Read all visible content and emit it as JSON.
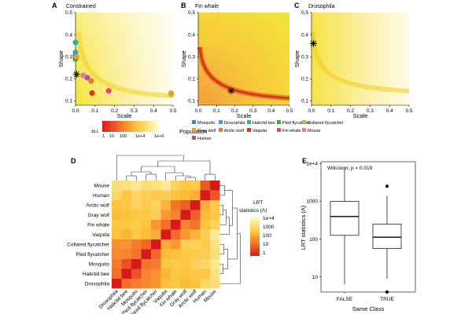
{
  "chart_data": [
    {
      "panel": "A",
      "title": "Constrained",
      "type": "heatmap-scatter",
      "xlabel": "Scale",
      "ylabel": "Shape",
      "xticks": [
        "0.0",
        "0.1",
        "0.2",
        "0.3",
        "0.4",
        "0.5"
      ],
      "yticks": [
        "0.1",
        "0.2",
        "0.3",
        "0.4",
        "0.5"
      ],
      "xlim": [
        0,
        0.5
      ],
      "ylim": [
        0.08,
        0.5
      ],
      "mle": {
        "x": 0.005,
        "y": 0.22
      },
      "points": [
        {
          "name": "Halictid bee",
          "x": 0.0,
          "y": 0.365
        },
        {
          "name": "Drosophila",
          "x": 0.0,
          "y": 0.32
        },
        {
          "name": "Mosquito",
          "x": 0.0,
          "y": 0.305
        },
        {
          "name": "Pied flycatcher",
          "x": 0.0,
          "y": 0.29
        },
        {
          "name": "Gray wolf",
          "x": 0.005,
          "y": 0.3
        },
        {
          "name": "Human",
          "x": 0.06,
          "y": 0.205
        },
        {
          "name": "Mouse",
          "x": 0.04,
          "y": 0.215
        },
        {
          "name": "Arctic wolf",
          "x": 0.08,
          "y": 0.19
        },
        {
          "name": "Fin whale",
          "x": 0.17,
          "y": 0.145
        },
        {
          "name": "Vaquita",
          "x": 0.085,
          "y": 0.135
        },
        {
          "name": "Collared flycatcher",
          "x": 0.49,
          "y": 0.135
        },
        {
          "name": "Gray wolf 2",
          "x": 0.49,
          "y": 0.13
        }
      ]
    },
    {
      "panel": "B",
      "title": "Fin whale",
      "type": "heatmap",
      "xlabel": "Scale",
      "ylabel": "Shape",
      "xticks": [
        "0.0",
        "0.1",
        "0.2",
        "0.3",
        "0.4",
        "0.5"
      ],
      "yticks": [
        "0.1",
        "0.2",
        "0.3",
        "0.4",
        "0.5"
      ],
      "xlim": [
        0,
        0.5
      ],
      "ylim": [
        0.08,
        0.5
      ],
      "mle": {
        "x": 0.18,
        "y": 0.145
      }
    },
    {
      "panel": "C",
      "title": "Drosophila",
      "type": "heatmap",
      "xlabel": "Scale",
      "ylabel": "Shape",
      "xticks": [
        "0.0",
        "0.1",
        "0.2",
        "0.3",
        "0.4",
        "0.5"
      ],
      "yticks": [
        "0.1",
        "0.2",
        "0.3",
        "0.4",
        "0.5"
      ],
      "xlim": [
        0,
        0.5
      ],
      "ylim": [
        0.08,
        0.5
      ],
      "mle": {
        "x": 0.01,
        "y": 0.36
      }
    },
    {
      "panel": "D",
      "type": "heatmap",
      "labels": [
        "Drosophila",
        "Halictid bee",
        "Mosquito",
        "Pied flycatcher",
        "Collared flycatcher",
        "Vaquita",
        "Fin whale",
        "Gray wolf",
        "Arctic wolf",
        "Human",
        "Mouse"
      ],
      "values_log10": [
        [
          0,
          1.2,
          1.4,
          1.6,
          1.7,
          2.4,
          2.5,
          2.3,
          2.4,
          2.9,
          3.1
        ],
        [
          1.2,
          0,
          0.8,
          1.5,
          1.7,
          2.2,
          2.5,
          2.4,
          2.5,
          2.5,
          3.2
        ],
        [
          1.4,
          0.8,
          0,
          1.3,
          1.4,
          2.5,
          2.6,
          2.5,
          2.8,
          2.9,
          3.4
        ],
        [
          1.6,
          1.5,
          1.3,
          0,
          1.1,
          2.3,
          2.4,
          2.5,
          2.6,
          2.7,
          3.1
        ],
        [
          1.7,
          1.7,
          1.4,
          1.1,
          0,
          2.1,
          1.8,
          2.7,
          2.8,
          2.6,
          3.2
        ],
        [
          2.4,
          2.2,
          2.5,
          2.3,
          2.1,
          0,
          1.2,
          1.8,
          2.2,
          2.7,
          3.5
        ],
        [
          2.5,
          2.5,
          2.6,
          2.4,
          1.8,
          1.2,
          0,
          1.5,
          1.3,
          2.4,
          2.8
        ],
        [
          2.3,
          2.4,
          2.5,
          2.5,
          2.7,
          1.8,
          1.5,
          0,
          1.0,
          2.3,
          2.5
        ],
        [
          2.4,
          2.5,
          2.8,
          2.6,
          2.8,
          2.2,
          1.3,
          1.0,
          0,
          2.1,
          2.6
        ],
        [
          2.9,
          2.5,
          2.9,
          2.7,
          2.6,
          2.7,
          2.4,
          2.3,
          2.1,
          0,
          0.9
        ],
        [
          3.1,
          3.2,
          3.4,
          3.1,
          3.2,
          3.5,
          2.8,
          2.5,
          2.6,
          0.9,
          0
        ]
      ],
      "legend_title": [
        "LRT",
        "statistics (Λ)"
      ],
      "legend_ticks": [
        "1e+4",
        "1000",
        "100",
        "10",
        "1"
      ]
    },
    {
      "panel": "E",
      "type": "boxplot",
      "annotation": "Wilcoxon, p = 0.019",
      "xlabel": "Same Class",
      "ylabel": "LRT statistics (Λ)",
      "categories": [
        "FALSE",
        "TRUE"
      ],
      "yticks": [
        "1e+4",
        "1000",
        "100",
        "10"
      ],
      "ylim_log10": [
        0.6,
        4.05
      ],
      "boxes_log10": [
        {
          "category": "FALSE",
          "min": 0.8,
          "q1": 2.1,
          "median": 2.6,
          "q3": 3.0,
          "max": 3.9,
          "outliers": []
        },
        {
          "category": "TRUE",
          "min": 0.95,
          "q1": 1.75,
          "median": 2.05,
          "q3": 2.4,
          "max": 3.15,
          "outliers": [
            3.4,
            0.6
          ]
        }
      ]
    }
  ],
  "legends": {
    "gradient_title": "ΔLL",
    "gradient_ticks": [
      "1",
      "10",
      "100",
      "1e+4",
      "1e+6"
    ],
    "population_title": "Population",
    "population": [
      {
        "name": "Mosquito",
        "color": "#4f7fbf"
      },
      {
        "name": "Drosophila",
        "color": "#39a7c9"
      },
      {
        "name": "Halictid bee",
        "color": "#30b0a0"
      },
      {
        "name": "Pied flycatcher",
        "color": "#4f9a3f"
      },
      {
        "name": "Collared flycatcher",
        "color": "#a6c64a"
      },
      {
        "name": "Gray wolf",
        "color": "#f0a020"
      },
      {
        "name": "Arctic wolf",
        "color": "#e87a2a"
      },
      {
        "name": "Vaquita",
        "color": "#d7342b"
      },
      {
        "name": "Fin whale",
        "color": "#e9466a"
      },
      {
        "name": "Mouse",
        "color": "#e873b5"
      },
      {
        "name": "Human",
        "color": "#8e5aaa"
      }
    ]
  }
}
